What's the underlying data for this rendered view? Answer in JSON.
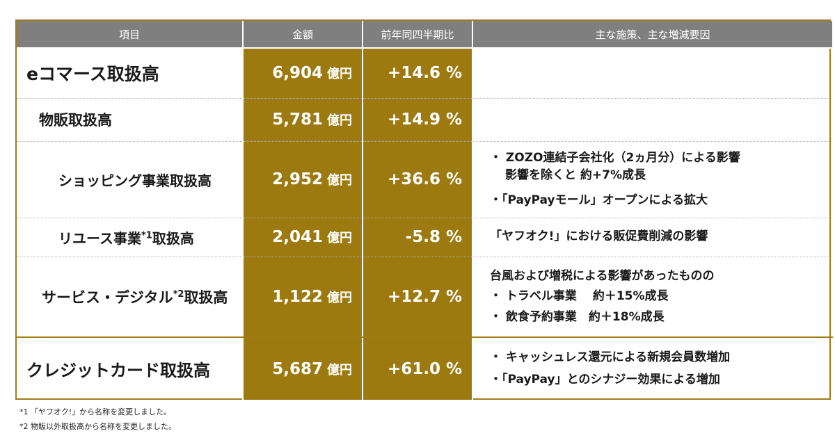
{
  "table": {
    "headers": [
      "項目",
      "金額",
      "前年同四半期比",
      "主な施策、主な増減要因"
    ],
    "unit": "億円",
    "rows": [
      {
        "item": "eコマース取扱高",
        "amount": "6,904",
        "change": "+14.6 %",
        "notes": []
      },
      {
        "item": "物販取扱高",
        "amount": "5,781",
        "change": "+14.9 %",
        "notes": []
      },
      {
        "item": "ショッピング事業取扱高",
        "amount": "2,952",
        "change": "+36.6 %",
        "notes": [
          "・ ZOZO連結子会社化（2ヵ月分）による影響",
          "影響を除くと 約+7%成長",
          "・「PayPayモール」オープンによる拡大"
        ]
      },
      {
        "item_pre": "リユース事業",
        "item_sup": "*1",
        "item_post": "取扱高",
        "amount": "2,041",
        "change": "-5.8 %",
        "notes": [
          "「ヤフオク!」における販促費削減の影響"
        ]
      },
      {
        "item_pre": "サービス・デジタル",
        "item_sup": "*2",
        "item_post": "取扱高",
        "amount": "1,122",
        "change": "+12.7 %",
        "notes": [
          "台風および増税による影響があったものの",
          "・ トラベル事業　 約＋15%成長",
          "・ 飲食予約事業　約＋18%成長"
        ]
      },
      {
        "item": "クレジットカード取扱高",
        "amount": "5,687",
        "change": "+61.0 %",
        "notes": [
          "・ キャッシュレス還元による新規会員数増加",
          "・「PayPay」とのシナジー効果による増加"
        ]
      }
    ]
  },
  "footnotes": [
    "*1 「ヤフオク!」から名称を変更しました。",
    "*2 物販以外取扱高から名称を変更しました。"
  ],
  "colors": {
    "gold": "#9c7a0f",
    "header_gray": "#7f7f7f",
    "border_gold": "#a07c15"
  }
}
